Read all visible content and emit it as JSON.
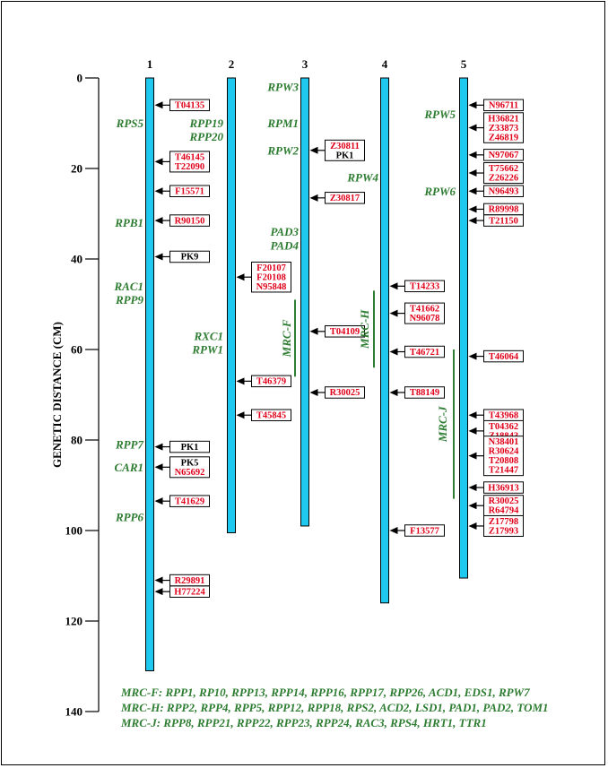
{
  "axis": {
    "label": "GENETIC DISTANCE (CM)",
    "ticks": [
      0,
      20,
      40,
      60,
      80,
      100,
      120,
      140
    ]
  },
  "colors": {
    "chromosome": "#1ec8ee",
    "gene": "#2e7d32",
    "red_marker": "#e0001a",
    "black_marker": "#000000"
  },
  "chromosomes": [
    {
      "name": "1",
      "length": 131,
      "genes": [
        {
          "text": "RPS5",
          "cm": 10
        },
        {
          "text": "RPB1",
          "cm": 32
        },
        {
          "text": "RAC1",
          "cm": 46
        },
        {
          "text": "RPP9",
          "cm": 49
        },
        {
          "text": "RPP7",
          "cm": 81
        },
        {
          "text": "CAR1",
          "cm": 86
        },
        {
          "text": "RPP6",
          "cm": 97
        }
      ],
      "markers": [
        {
          "cm": 6,
          "labels": [
            "T04135"
          ],
          "color": "red"
        },
        {
          "cm": 18.5,
          "labels": [
            "T46145",
            "T22090"
          ],
          "color": "red"
        },
        {
          "cm": 25,
          "labels": [
            "F15571"
          ],
          "color": "red"
        },
        {
          "cm": 31.5,
          "labels": [
            "R90150"
          ],
          "color": "red"
        },
        {
          "cm": 39.5,
          "labels": [
            "PK9"
          ],
          "color": "black"
        },
        {
          "cm": 81.5,
          "labels": [
            "PK1"
          ],
          "color": "black"
        },
        {
          "cm": 86,
          "labels": [
            "PK5",
            "N65692"
          ],
          "color": "mixed"
        },
        {
          "cm": 93.5,
          "labels": [
            "T41629"
          ],
          "color": "red"
        },
        {
          "cm": 111,
          "labels": [
            "R29891"
          ],
          "color": "red"
        },
        {
          "cm": 113.5,
          "labels": [
            "H77224"
          ],
          "color": "red"
        }
      ]
    },
    {
      "name": "2",
      "length": 100.5,
      "genes": [
        {
          "text": "RPP19",
          "cm": 10
        },
        {
          "text": "RPP20",
          "cm": 13
        },
        {
          "text": "RXC1",
          "cm": 57
        },
        {
          "text": "RPW1",
          "cm": 60
        }
      ],
      "markers": [
        {
          "cm": 44,
          "labels": [
            "F20107",
            "F20108",
            "N95848"
          ],
          "color": "red"
        },
        {
          "cm": 67,
          "labels": [
            "T46379"
          ],
          "color": "red"
        },
        {
          "cm": 74.5,
          "labels": [
            "T45845"
          ],
          "color": "red"
        }
      ]
    },
    {
      "name": "3",
      "length": 99,
      "genes": [
        {
          "text": "RPW3",
          "cm": 2
        },
        {
          "text": "RPM1",
          "cm": 10
        },
        {
          "text": "RPW2",
          "cm": 16
        },
        {
          "text": "PAD3",
          "cm": 34
        },
        {
          "text": "PAD4",
          "cm": 37
        }
      ],
      "qtl": {
        "text": "MRC-F",
        "from": 49,
        "to": 66
      },
      "markers": [
        {
          "cm": 16,
          "labels": [
            "Z30811",
            "PK1"
          ],
          "color": "mixed"
        },
        {
          "cm": 26.5,
          "labels": [
            "Z30817"
          ],
          "color": "red"
        },
        {
          "cm": 56,
          "labels": [
            "T04109"
          ],
          "color": "red"
        },
        {
          "cm": 69.5,
          "labels": [
            "R30025"
          ],
          "color": "red"
        }
      ]
    },
    {
      "name": "4",
      "length": 116,
      "genes": [
        {
          "text": "RPW4",
          "cm": 22
        }
      ],
      "qtl": {
        "text": "MRC-H",
        "from": 47,
        "to": 64
      },
      "markers": [
        {
          "cm": 46,
          "labels": [
            "T14233"
          ],
          "color": "red"
        },
        {
          "cm": 52,
          "labels": [
            "T41662",
            "N96078"
          ],
          "color": "red"
        },
        {
          "cm": 60.5,
          "labels": [
            "T46721"
          ],
          "color": "red"
        },
        {
          "cm": 69.5,
          "labels": [
            "T88149"
          ],
          "color": "red"
        },
        {
          "cm": 100,
          "labels": [
            "F13577"
          ],
          "color": "red"
        }
      ]
    },
    {
      "name": "5",
      "length": 110.5,
      "genes": [
        {
          "text": "RPW5",
          "cm": 8
        },
        {
          "text": "RPW6",
          "cm": 25
        }
      ],
      "qtl": {
        "text": "MRC-J",
        "from": 60,
        "to": 93
      },
      "markers": [
        {
          "cm": 6,
          "labels": [
            "N96711"
          ],
          "color": "red"
        },
        {
          "cm": 11,
          "labels": [
            "H36821",
            "Z33873",
            "Z46819"
          ],
          "color": "red"
        },
        {
          "cm": 17,
          "labels": [
            "N97067"
          ],
          "color": "red"
        },
        {
          "cm": 21,
          "labels": [
            "T75662",
            "Z26226"
          ],
          "color": "red"
        },
        {
          "cm": 25,
          "labels": [
            "N96493"
          ],
          "color": "red"
        },
        {
          "cm": 29,
          "labels": [
            "R89998"
          ],
          "color": "red"
        },
        {
          "cm": 31.5,
          "labels": [
            "T21150"
          ],
          "color": "red"
        },
        {
          "cm": 61.5,
          "labels": [
            "T46064"
          ],
          "color": "red"
        },
        {
          "cm": 74.5,
          "labels": [
            "T43968"
          ],
          "color": "red"
        },
        {
          "cm": 78,
          "labels": [
            "T04362",
            "Z18843"
          ],
          "color": "red"
        },
        {
          "cm": 83.5,
          "labels": [
            "N38401",
            "R30624",
            "T20808",
            "T21447"
          ],
          "color": "red"
        },
        {
          "cm": 90.5,
          "labels": [
            "H36913"
          ],
          "color": "red"
        },
        {
          "cm": 94.5,
          "labels": [
            "R30025",
            "R64794"
          ],
          "color": "red"
        },
        {
          "cm": 99,
          "labels": [
            "Z17798",
            "Z17993"
          ],
          "color": "red"
        }
      ]
    }
  ],
  "legend": [
    "MRC-F: RPP1, RP10, RPP13, RPP14, RPP16, RPP17, RPP26, ACD1, EDS1, RPW7",
    "MRC-H: RPP2, RPP4, RPP5, RPP12, RPP18, RPS2, ACD2, LSD1, PAD1, PAD2, TOM1",
    "MRC-J: RPP8, RPP21, RPP22, RPP23, RPP24, RAC3, RPS4, HRT1, TTR1"
  ]
}
